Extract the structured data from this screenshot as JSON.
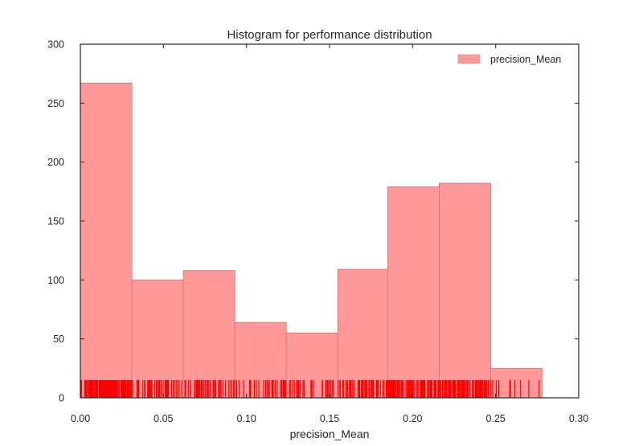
{
  "chart_data": {
    "type": "bar",
    "title": "Histogram for performance distribution",
    "xlabel": "precision_Mean",
    "ylabel": "",
    "xlim": [
      0.0,
      0.3
    ],
    "ylim": [
      0,
      300
    ],
    "xticks": [
      "0.00",
      "0.05",
      "0.10",
      "0.15",
      "0.20",
      "0.25",
      "0.30"
    ],
    "yticks": [
      "0",
      "50",
      "100",
      "150",
      "200",
      "250",
      "300"
    ],
    "legend": {
      "position": "top-right",
      "entries": [
        "precision_Mean"
      ]
    },
    "bar_color": "#ff9999",
    "rug_color": "#ff0000",
    "grid": false,
    "bins": [
      {
        "start": 0.0,
        "end": 0.031,
        "count": 267
      },
      {
        "start": 0.031,
        "end": 0.062,
        "count": 100
      },
      {
        "start": 0.062,
        "end": 0.093,
        "count": 108
      },
      {
        "start": 0.093,
        "end": 0.124,
        "count": 64
      },
      {
        "start": 0.124,
        "end": 0.155,
        "count": 55
      },
      {
        "start": 0.155,
        "end": 0.185,
        "count": 109
      },
      {
        "start": 0.185,
        "end": 0.216,
        "count": 179
      },
      {
        "start": 0.216,
        "end": 0.247,
        "count": 182
      },
      {
        "start": 0.247,
        "end": 0.278,
        "count": 25
      }
    ]
  }
}
